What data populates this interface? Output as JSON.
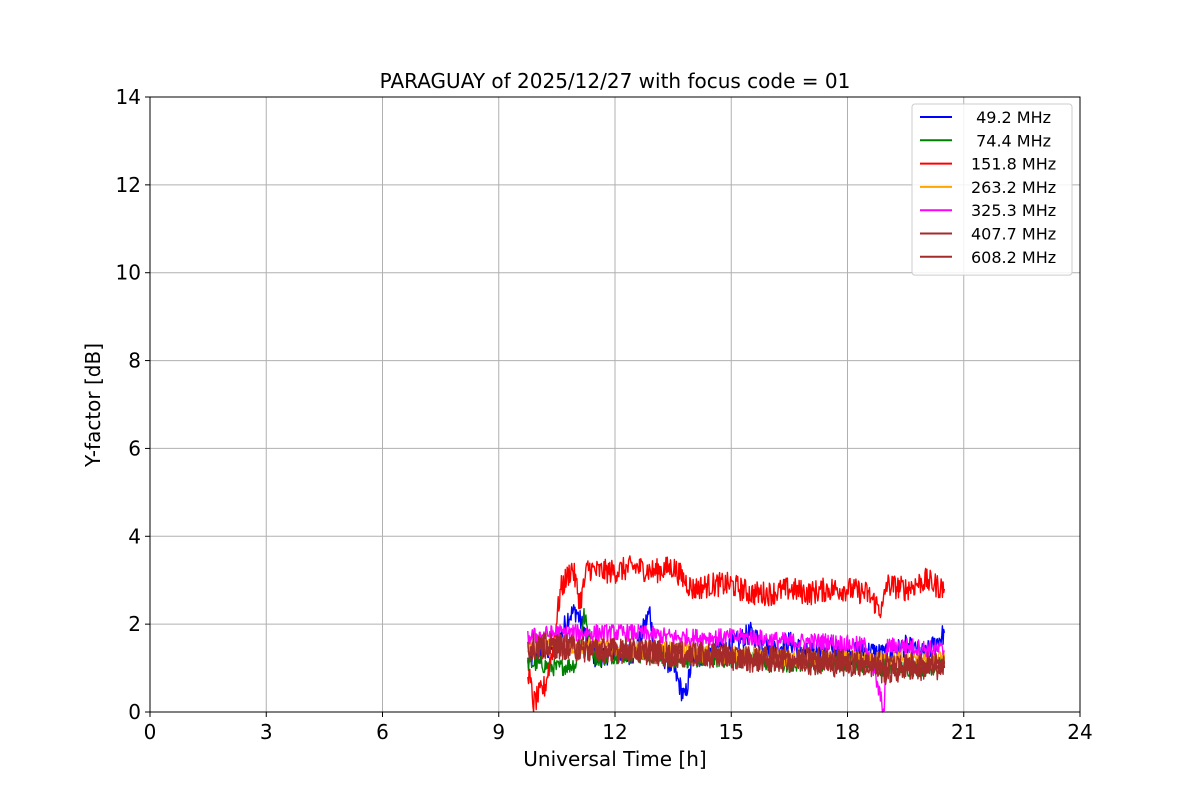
{
  "chart_data": {
    "type": "line",
    "title": "PARAGUAY of 2025/12/27 with focus code = 01",
    "xlabel": "Universal Time [h]",
    "ylabel": "Y-factor [dB]",
    "xlim": [
      0,
      24
    ],
    "ylim": [
      0,
      14
    ],
    "xticks": [
      0,
      3,
      6,
      9,
      12,
      15,
      18,
      21,
      24
    ],
    "yticks": [
      0,
      2,
      4,
      6,
      8,
      10,
      12,
      14
    ],
    "grid": true,
    "legend_position": "top-right",
    "series": [
      {
        "name": " 49.2 MHz",
        "color": "#0000ff",
        "x": [
          9.75,
          10.0,
          10.5,
          10.8,
          11.0,
          11.5,
          12.0,
          12.5,
          12.9,
          13.0,
          13.5,
          13.8,
          14.0,
          14.5,
          15.0,
          15.5,
          16.0,
          16.5,
          17.0,
          17.5,
          18.0,
          18.5,
          19.0,
          19.5,
          20.0,
          20.5
        ],
        "values": [
          1.1,
          1.3,
          1.5,
          2.2,
          2.3,
          1.2,
          1.4,
          1.3,
          2.3,
          1.5,
          1.0,
          0.3,
          1.2,
          1.4,
          1.5,
          1.8,
          1.4,
          1.6,
          1.3,
          1.5,
          1.3,
          1.4,
          1.3,
          1.5,
          1.3,
          1.8
        ]
      },
      {
        "name": " 74.4 MHz",
        "color": "#008000",
        "x": [
          9.75,
          10.0,
          10.5,
          11.0,
          11.2,
          11.5,
          12.0,
          12.5,
          13.0,
          13.5,
          14.0,
          14.5,
          15.0,
          15.5,
          16.0,
          16.5,
          17.0,
          17.5,
          18.0,
          18.5,
          19.0,
          19.5,
          20.0,
          20.5
        ],
        "values": [
          1.1,
          1.1,
          1.0,
          1.1,
          2.2,
          1.2,
          1.3,
          1.3,
          1.3,
          1.2,
          1.2,
          1.2,
          1.2,
          1.2,
          1.1,
          1.1,
          1.1,
          1.1,
          1.1,
          1.1,
          1.0,
          1.0,
          1.0,
          1.1
        ]
      },
      {
        "name": "151.8 MHz",
        "color": "#ff0000",
        "x": [
          9.75,
          9.9,
          10.2,
          10.4,
          10.6,
          10.9,
          11.1,
          11.3,
          11.5,
          12.0,
          12.5,
          13.0,
          13.5,
          14.0,
          14.5,
          15.0,
          15.5,
          16.0,
          16.5,
          17.0,
          17.5,
          18.0,
          18.5,
          18.9,
          19.0,
          19.5,
          20.0,
          20.5
        ],
        "values": [
          1.0,
          0.2,
          0.6,
          1.5,
          2.8,
          3.3,
          2.5,
          3.3,
          3.2,
          3.2,
          3.3,
          3.2,
          3.3,
          2.8,
          2.9,
          2.9,
          2.7,
          2.7,
          2.8,
          2.7,
          2.8,
          2.8,
          2.7,
          2.3,
          2.9,
          2.8,
          3.0,
          2.8
        ]
      },
      {
        "name": "263.2 MHz",
        "color": "#ffa500",
        "x": [
          9.75,
          10.5,
          11.5,
          12.5,
          13.5,
          14.5,
          15.5,
          16.5,
          17.5,
          18.5,
          19.5,
          20.5
        ],
        "values": [
          1.5,
          1.5,
          1.5,
          1.4,
          1.4,
          1.3,
          1.3,
          1.2,
          1.2,
          1.2,
          1.2,
          1.2
        ]
      },
      {
        "name": "325.3 MHz",
        "color": "#ff00ff",
        "x": [
          9.75,
          10.5,
          11.5,
          12.5,
          13.5,
          14.5,
          15.5,
          16.5,
          17.5,
          18.5,
          18.95,
          19.0,
          19.5,
          20.5
        ],
        "values": [
          1.7,
          1.8,
          1.8,
          1.8,
          1.7,
          1.7,
          1.7,
          1.6,
          1.6,
          1.5,
          0.0,
          1.5,
          1.5,
          1.4
        ]
      },
      {
        "name": "407.7 MHz",
        "color": "#a52a2a",
        "x": [
          9.75,
          10.5,
          11.5,
          12.5,
          13.5,
          14.5,
          15.5,
          16.5,
          17.5,
          18.5,
          19.5,
          20.5
        ],
        "values": [
          1.4,
          1.5,
          1.4,
          1.4,
          1.3,
          1.3,
          1.2,
          1.2,
          1.2,
          1.1,
          1.1,
          1.1
        ]
      },
      {
        "name": "608.2 MHz",
        "color": "#a52a2a",
        "x": [
          9.75,
          10.5,
          11.5,
          12.5,
          13.5,
          14.5,
          15.5,
          16.5,
          17.5,
          18.5,
          19.0,
          19.5,
          20.5
        ],
        "values": [
          1.5,
          1.5,
          1.4,
          1.4,
          1.3,
          1.3,
          1.2,
          1.2,
          1.1,
          1.1,
          0.9,
          1.0,
          1.0
        ]
      }
    ]
  }
}
